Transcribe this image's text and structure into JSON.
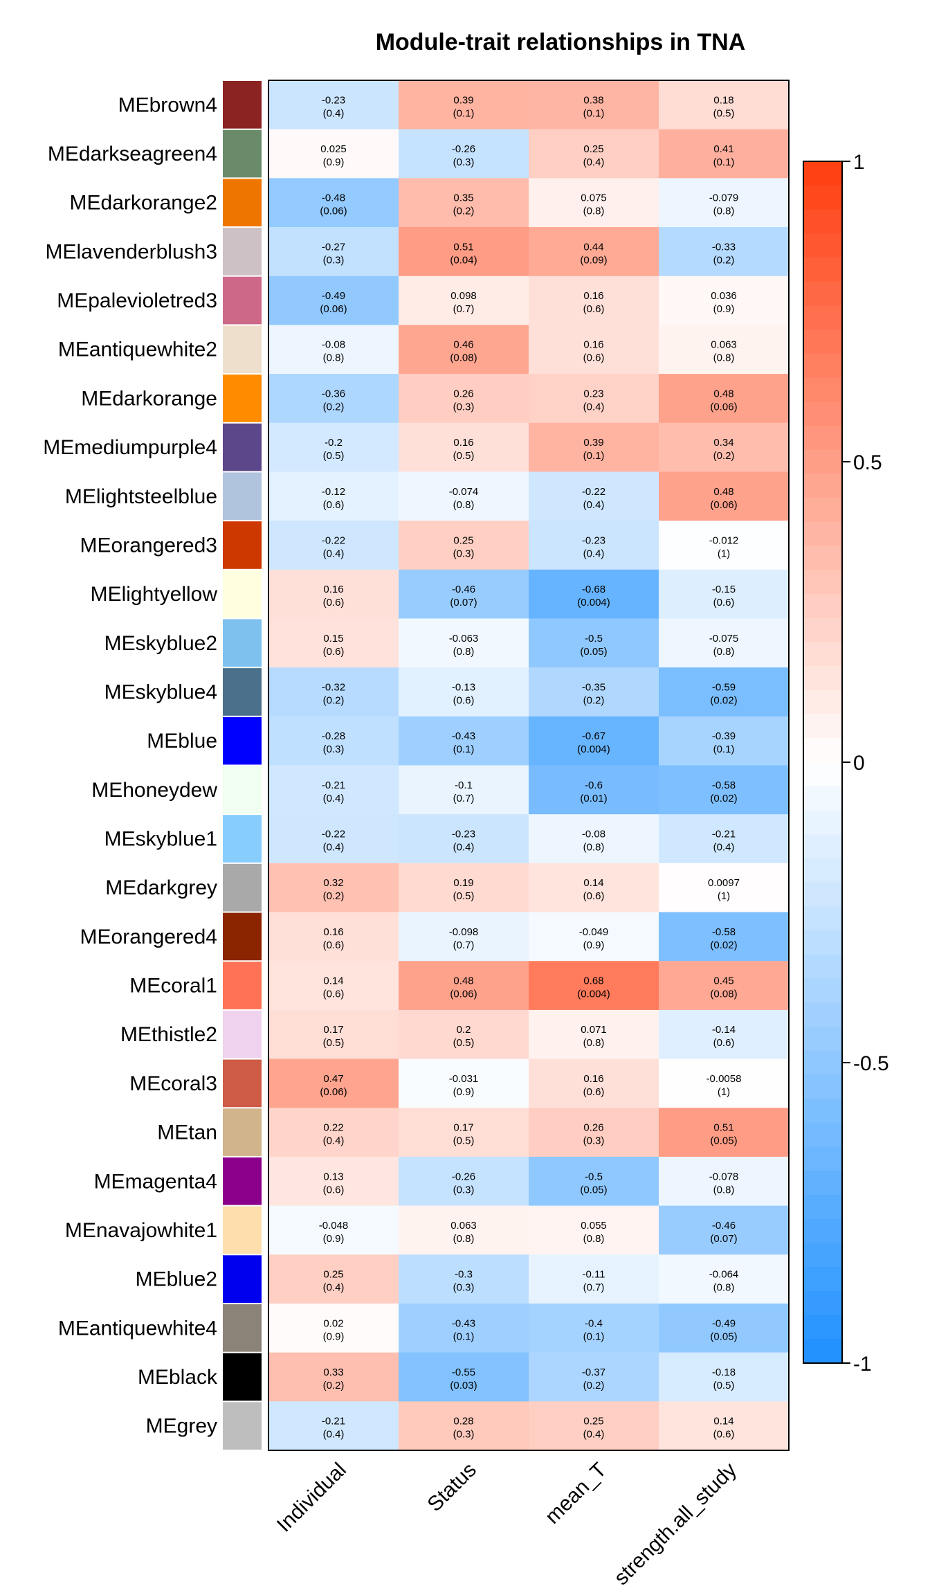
{
  "chart_data": {
    "type": "heatmap",
    "title": "Module-trait relationships in TNA",
    "columns": [
      "Individual",
      "Status",
      "mean_T",
      "strength.all_study"
    ],
    "rows": [
      {
        "name": "MEbrown4",
        "color": "#8B2323",
        "values": [
          -0.23,
          0.39,
          0.38,
          0.18
        ],
        "labels": [
          "-0.23",
          "0.39",
          "0.38",
          "0.18"
        ],
        "pvalues": [
          "(0.4)",
          "(0.1)",
          "(0.1)",
          "(0.5)"
        ]
      },
      {
        "name": "MEdarkseagreen4",
        "color": "#698B69",
        "values": [
          0.025,
          -0.26,
          0.25,
          0.41
        ],
        "labels": [
          "0.025",
          "-0.26",
          "0.25",
          "0.41"
        ],
        "pvalues": [
          "(0.9)",
          "(0.3)",
          "(0.4)",
          "(0.1)"
        ]
      },
      {
        "name": "MEdarkorange2",
        "color": "#EE7600",
        "values": [
          -0.48,
          0.35,
          0.075,
          -0.079
        ],
        "labels": [
          "-0.48",
          "0.35",
          "0.075",
          "-0.079"
        ],
        "pvalues": [
          "(0.06)",
          "(0.2)",
          "(0.8)",
          "(0.8)"
        ]
      },
      {
        "name": "MElavenderblush3",
        "color": "#CDC1C5",
        "values": [
          -0.27,
          0.51,
          0.44,
          -0.33
        ],
        "labels": [
          "-0.27",
          "0.51",
          "0.44",
          "-0.33"
        ],
        "pvalues": [
          "(0.3)",
          "(0.04)",
          "(0.09)",
          "(0.2)"
        ]
      },
      {
        "name": "MEpalevioletred3",
        "color": "#CD6889",
        "values": [
          -0.49,
          0.098,
          0.16,
          0.036
        ],
        "labels": [
          "-0.49",
          "0.098",
          "0.16",
          "0.036"
        ],
        "pvalues": [
          "(0.06)",
          "(0.7)",
          "(0.6)",
          "(0.9)"
        ]
      },
      {
        "name": "MEantiquewhite2",
        "color": "#EEDFCC",
        "values": [
          -0.08,
          0.46,
          0.16,
          0.063
        ],
        "labels": [
          "-0.08",
          "0.46",
          "0.16",
          "0.063"
        ],
        "pvalues": [
          "(0.8)",
          "(0.08)",
          "(0.6)",
          "(0.8)"
        ]
      },
      {
        "name": "MEdarkorange",
        "color": "#FF8C00",
        "values": [
          -0.36,
          0.26,
          0.23,
          0.48
        ],
        "labels": [
          "-0.36",
          "0.26",
          "0.23",
          "0.48"
        ],
        "pvalues": [
          "(0.2)",
          "(0.3)",
          "(0.4)",
          "(0.06)"
        ]
      },
      {
        "name": "MEmediumpurple4",
        "color": "#5D478B",
        "values": [
          -0.2,
          0.16,
          0.39,
          0.34
        ],
        "labels": [
          "-0.2",
          "0.16",
          "0.39",
          "0.34"
        ],
        "pvalues": [
          "(0.5)",
          "(0.5)",
          "(0.1)",
          "(0.2)"
        ]
      },
      {
        "name": "MElightsteelblue",
        "color": "#B0C4DE",
        "values": [
          -0.12,
          -0.074,
          -0.22,
          0.48
        ],
        "labels": [
          "-0.12",
          "-0.074",
          "-0.22",
          "0.48"
        ],
        "pvalues": [
          "(0.6)",
          "(0.8)",
          "(0.4)",
          "(0.06)"
        ]
      },
      {
        "name": "MEorangered3",
        "color": "#CD3700",
        "values": [
          -0.22,
          0.25,
          -0.23,
          -0.012
        ],
        "labels": [
          "-0.22",
          "0.25",
          "-0.23",
          "-0.012"
        ],
        "pvalues": [
          "(0.4)",
          "(0.3)",
          "(0.4)",
          "(1)"
        ]
      },
      {
        "name": "MElightyellow",
        "color": "#FFFFE0",
        "values": [
          0.16,
          -0.46,
          -0.68,
          -0.15
        ],
        "labels": [
          "0.16",
          "-0.46",
          "-0.68",
          "-0.15"
        ],
        "pvalues": [
          "(0.6)",
          "(0.07)",
          "(0.004)",
          "(0.6)"
        ]
      },
      {
        "name": "MEskyblue2",
        "color": "#7EC0EE",
        "values": [
          0.15,
          -0.063,
          -0.5,
          -0.075
        ],
        "labels": [
          "0.15",
          "-0.063",
          "-0.5",
          "-0.075"
        ],
        "pvalues": [
          "(0.6)",
          "(0.8)",
          "(0.05)",
          "(0.8)"
        ]
      },
      {
        "name": "MEskyblue4",
        "color": "#4A708B",
        "values": [
          -0.32,
          -0.13,
          -0.35,
          -0.59
        ],
        "labels": [
          "-0.32",
          "-0.13",
          "-0.35",
          "-0.59"
        ],
        "pvalues": [
          "(0.2)",
          "(0.6)",
          "(0.2)",
          "(0.02)"
        ]
      },
      {
        "name": "MEblue",
        "color": "#0000FF",
        "values": [
          -0.28,
          -0.43,
          -0.67,
          -0.39
        ],
        "labels": [
          "-0.28",
          "-0.43",
          "-0.67",
          "-0.39"
        ],
        "pvalues": [
          "(0.3)",
          "(0.1)",
          "(0.004)",
          "(0.1)"
        ]
      },
      {
        "name": "MEhoneydew",
        "color": "#F0FFF0",
        "values": [
          -0.21,
          -0.1,
          -0.6,
          -0.58
        ],
        "labels": [
          "-0.21",
          "-0.1",
          "-0.6",
          "-0.58"
        ],
        "pvalues": [
          "(0.4)",
          "(0.7)",
          "(0.01)",
          "(0.02)"
        ]
      },
      {
        "name": "MEskyblue1",
        "color": "#87CEFF",
        "values": [
          -0.22,
          -0.23,
          -0.08,
          -0.21
        ],
        "labels": [
          "-0.22",
          "-0.23",
          "-0.08",
          "-0.21"
        ],
        "pvalues": [
          "(0.4)",
          "(0.4)",
          "(0.8)",
          "(0.4)"
        ]
      },
      {
        "name": "MEdarkgrey",
        "color": "#A9A9A9",
        "values": [
          0.32,
          0.19,
          0.14,
          0.0097
        ],
        "labels": [
          "0.32",
          "0.19",
          "0.14",
          "0.0097"
        ],
        "pvalues": [
          "(0.2)",
          "(0.5)",
          "(0.6)",
          "(1)"
        ]
      },
      {
        "name": "MEorangered4",
        "color": "#8B2500",
        "values": [
          0.16,
          -0.098,
          -0.049,
          -0.58
        ],
        "labels": [
          "0.16",
          "-0.098",
          "-0.049",
          "-0.58"
        ],
        "pvalues": [
          "(0.6)",
          "(0.7)",
          "(0.9)",
          "(0.02)"
        ]
      },
      {
        "name": "MEcoral1",
        "color": "#FF7256",
        "values": [
          0.14,
          0.48,
          0.68,
          0.45
        ],
        "labels": [
          "0.14",
          "0.48",
          "0.68",
          "0.45"
        ],
        "pvalues": [
          "(0.6)",
          "(0.06)",
          "(0.004)",
          "(0.08)"
        ]
      },
      {
        "name": "MEthistle2",
        "color": "#EED2EE",
        "values": [
          0.17,
          0.2,
          0.071,
          -0.14
        ],
        "labels": [
          "0.17",
          "0.2",
          "0.071",
          "-0.14"
        ],
        "pvalues": [
          "(0.5)",
          "(0.5)",
          "(0.8)",
          "(0.6)"
        ]
      },
      {
        "name": "MEcoral3",
        "color": "#CD5B45",
        "values": [
          0.47,
          -0.031,
          0.16,
          -0.0058
        ],
        "labels": [
          "0.47",
          "-0.031",
          "0.16",
          "-0.0058"
        ],
        "pvalues": [
          "(0.06)",
          "(0.9)",
          "(0.6)",
          "(1)"
        ]
      },
      {
        "name": "MEtan",
        "color": "#D2B48C",
        "values": [
          0.22,
          0.17,
          0.26,
          0.51
        ],
        "labels": [
          "0.22",
          "0.17",
          "0.26",
          "0.51"
        ],
        "pvalues": [
          "(0.4)",
          "(0.5)",
          "(0.3)",
          "(0.05)"
        ]
      },
      {
        "name": "MEmagenta4",
        "color": "#8B008B",
        "values": [
          0.13,
          -0.26,
          -0.5,
          -0.078
        ],
        "labels": [
          "0.13",
          "-0.26",
          "-0.5",
          "-0.078"
        ],
        "pvalues": [
          "(0.6)",
          "(0.3)",
          "(0.05)",
          "(0.8)"
        ]
      },
      {
        "name": "MEnavajowhite1",
        "color": "#FFDEAD",
        "values": [
          -0.048,
          0.063,
          0.055,
          -0.46
        ],
        "labels": [
          "-0.048",
          "0.063",
          "0.055",
          "-0.46"
        ],
        "pvalues": [
          "(0.9)",
          "(0.8)",
          "(0.8)",
          "(0.07)"
        ]
      },
      {
        "name": "MEblue2",
        "color": "#0000EE",
        "values": [
          0.25,
          -0.3,
          -0.11,
          -0.064
        ],
        "labels": [
          "0.25",
          "-0.3",
          "-0.11",
          "-0.064"
        ],
        "pvalues": [
          "(0.4)",
          "(0.3)",
          "(0.7)",
          "(0.8)"
        ]
      },
      {
        "name": "MEantiquewhite4",
        "color": "#8B8378",
        "values": [
          0.02,
          -0.43,
          -0.4,
          -0.49
        ],
        "labels": [
          "0.02",
          "-0.43",
          "-0.4",
          "-0.49"
        ],
        "pvalues": [
          "(0.9)",
          "(0.1)",
          "(0.1)",
          "(0.05)"
        ]
      },
      {
        "name": "MEblack",
        "color": "#000000",
        "values": [
          0.33,
          -0.55,
          -0.37,
          -0.18
        ],
        "labels": [
          "0.33",
          "-0.55",
          "-0.37",
          "-0.18"
        ],
        "pvalues": [
          "(0.2)",
          "(0.03)",
          "(0.2)",
          "(0.5)"
        ]
      },
      {
        "name": "MEgrey",
        "color": "#BEBEBE",
        "values": [
          -0.21,
          0.28,
          0.25,
          0.14
        ],
        "labels": [
          "-0.21",
          "0.28",
          "0.25",
          "0.14"
        ],
        "pvalues": [
          "(0.4)",
          "(0.3)",
          "(0.4)",
          "(0.6)"
        ]
      }
    ],
    "color_scale": {
      "min": -1,
      "max": 1,
      "low_color": "#1E90FF",
      "mid_color": "#FFFFFF",
      "high_color": "#FF3D0F",
      "ticks": [
        1,
        0.5,
        0,
        -0.5,
        -1
      ],
      "tick_labels": [
        "1",
        "0.5",
        "0",
        "-0.5",
        "-1"
      ]
    }
  }
}
